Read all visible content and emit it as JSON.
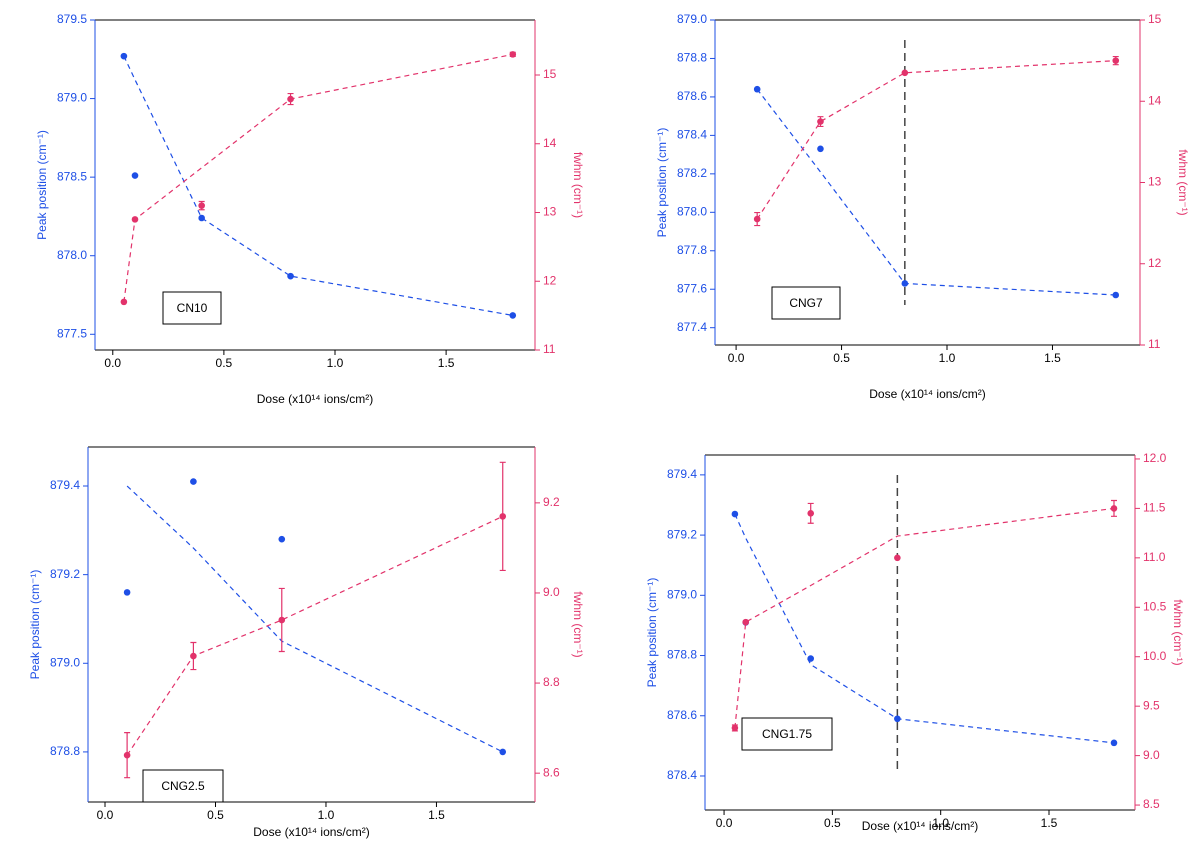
{
  "chart_data": [
    {
      "type": "scatter",
      "annotation": "CN10",
      "xlabel": "Dose (x10¹⁴ ions/cm²)",
      "ylabel": "Peak position (cm⁻¹)",
      "y2label": "fwhm (cm⁻¹)",
      "x": [
        0.05,
        0.1,
        0.4,
        0.8,
        1.8
      ],
      "xlim": [
        -0.08,
        1.9
      ],
      "xticks": [
        {
          "value": 0,
          "label": "0.0"
        },
        0.5,
        {
          "value": 1,
          "label": "1.0"
        },
        1.5
      ],
      "ylim": [
        877.4,
        879.5
      ],
      "yticks": [
        877.5,
        {
          "value": 878,
          "label": "878.0"
        },
        878.5,
        {
          "value": 879,
          "label": "879.0"
        },
        879.5
      ],
      "y2lim": [
        11,
        15.8
      ],
      "y2ticks": [
        11,
        12,
        13,
        14,
        15
      ],
      "series": [
        {
          "color": "#1e4fe6",
          "style": "markers",
          "values": [
            879.27,
            878.51,
            878.24,
            877.87,
            877.62
          ]
        },
        {
          "color": "#1e4fe6",
          "style": "dashed",
          "values": [
            879.27,
            879.12,
            878.24,
            877.87,
            877.62
          ]
        },
        {
          "color": "#e2336b",
          "style": "markers",
          "axis": "y2",
          "values": [
            11.7,
            12.9,
            13.1,
            14.65,
            15.3
          ],
          "errors": [
            null,
            null,
            0.06,
            0.08,
            0.03
          ]
        },
        {
          "color": "#e2336b",
          "style": "dashed",
          "axis": "y2",
          "values": [
            11.7,
            12.9,
            13.65,
            14.65,
            15.3
          ]
        }
      ]
    },
    {
      "type": "scatter",
      "annotation": "CNG7",
      "xlabel": "Dose (x10¹⁴ ions/cm²)",
      "ylabel": "Peak position (cm⁻¹)",
      "y2label": "fwhm (cm⁻¹)",
      "x": [
        0.1,
        0.4,
        0.8,
        1.8
      ],
      "xlim": [
        -0.1,
        1.915
      ],
      "xticks": [
        {
          "value": 0,
          "label": "0.0"
        },
        0.5,
        {
          "value": 1,
          "label": "1.0"
        },
        1.5
      ],
      "ylim": [
        877.31,
        879.0
      ],
      "yticks": [
        877.4,
        877.6,
        877.8,
        {
          "value": 878,
          "label": "878.0"
        },
        878.2,
        878.4,
        878.6,
        878.8,
        {
          "value": 879,
          "label": "879.0"
        }
      ],
      "y2lim": [
        11,
        15
      ],
      "y2ticks": [
        11,
        12,
        13,
        14,
        15
      ],
      "vline": 0.8,
      "series": [
        {
          "color": "#1e4fe6",
          "style": "markers",
          "values": [
            878.64,
            878.33,
            877.63,
            877.57
          ]
        },
        {
          "color": "#1e4fe6",
          "style": "dashed",
          "values": [
            878.64,
            878.21,
            877.63,
            877.57
          ]
        },
        {
          "color": "#e2336b",
          "style": "markers",
          "axis": "y2",
          "values": [
            12.55,
            13.75,
            14.35,
            14.5
          ],
          "errors": [
            0.08,
            0.06,
            null,
            0.05
          ]
        },
        {
          "color": "#e2336b",
          "style": "dashed",
          "axis": "y2",
          "values": [
            12.55,
            13.75,
            14.35,
            14.5
          ]
        }
      ]
    },
    {
      "type": "scatter",
      "annotation": "CNG2.5",
      "xlabel": "Dose (x10¹⁴ ions/cm²)",
      "ylabel": "Peak position (cm⁻¹)",
      "y2label": "fwhm (cm⁻¹)",
      "x": [
        0.1,
        0.4,
        0.8,
        1.8
      ],
      "xlim": [
        -0.077,
        1.946
      ],
      "xticks": [
        {
          "value": 0,
          "label": "0.0"
        },
        0.5,
        {
          "value": 1,
          "label": "1.0"
        },
        1.5
      ],
      "ylim": [
        878.687,
        879.488
      ],
      "yticks": [
        878.8,
        {
          "value": 879,
          "label": "879.0"
        },
        879.2,
        879.4
      ],
      "y2lim": [
        8.536,
        9.324
      ],
      "y2ticks": [
        8.6,
        8.8,
        {
          "value": 9,
          "label": "9.0"
        },
        9.2
      ],
      "series": [
        {
          "color": "#1e4fe6",
          "style": "markers",
          "values": [
            879.16,
            879.41,
            879.28,
            878.8
          ]
        },
        {
          "color": "#1e4fe6",
          "style": "dashed",
          "values": [
            879.4,
            879.26,
            879.05,
            878.8
          ]
        },
        {
          "color": "#e2336b",
          "style": "markers",
          "axis": "y2",
          "values": [
            8.64,
            8.86,
            8.94,
            9.17
          ],
          "errors": [
            0.05,
            0.03,
            0.07,
            0.12
          ]
        },
        {
          "color": "#e2336b",
          "style": "dashed",
          "axis": "y2",
          "values": [
            8.64,
            8.86,
            8.94,
            9.17
          ]
        }
      ]
    },
    {
      "type": "scatter",
      "annotation": "CNG1.75",
      "xlabel": "Dose (x10¹⁴ ions/cm²)",
      "ylabel": "Peak position (cm⁻¹)",
      "y2label": "fwhm (cm⁻¹)",
      "x": [
        0.05,
        0.1,
        0.4,
        0.8,
        1.8
      ],
      "xlim": [
        -0.088,
        1.897
      ],
      "xticks": [
        {
          "value": 0,
          "label": "0.0"
        },
        0.5,
        {
          "value": 1,
          "label": "1.0"
        },
        1.5
      ],
      "ylim": [
        878.287,
        879.466
      ],
      "yticks": [
        878.4,
        878.6,
        878.8,
        {
          "value": 879,
          "label": "879.0"
        },
        879.2,
        879.4
      ],
      "y2lim": [
        8.45,
        12.04
      ],
      "y2ticks": [
        8.5,
        {
          "value": 9,
          "label": "9.0"
        },
        9.5,
        {
          "value": 10,
          "label": "10.0"
        },
        10.5,
        {
          "value": 11,
          "label": "11.0"
        },
        11.5,
        {
          "value": 12,
          "label": "12.0"
        }
      ],
      "vline": 0.8,
      "series": [
        {
          "color": "#1e4fe6",
          "style": "markers",
          "values": [
            879.27,
            878.91,
            878.79,
            878.59,
            878.51
          ]
        },
        {
          "color": "#1e4fe6",
          "style": "dashed",
          "values": [
            879.27,
            879.19,
            878.77,
            878.59,
            878.51
          ]
        },
        {
          "color": "#e2336b",
          "style": "markers",
          "axis": "y2",
          "values": [
            9.28,
            10.35,
            11.45,
            11.0,
            11.5
          ],
          "errors": [
            0.03,
            null,
            0.1,
            null,
            0.08
          ]
        },
        {
          "color": "#e2336b",
          "style": "dashed",
          "axis": "y2",
          "values": [
            9.28,
            10.35,
            10.72,
            11.22,
            11.5
          ]
        }
      ]
    }
  ]
}
